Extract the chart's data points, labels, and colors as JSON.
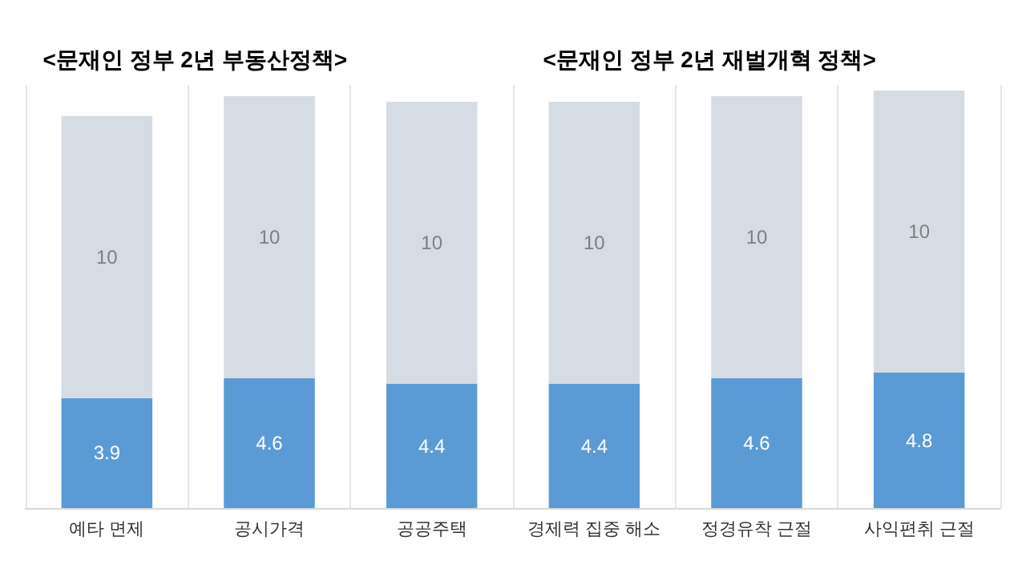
{
  "chart_data": {
    "type": "bar",
    "stacked": true,
    "data_labels": true,
    "grid": "x",
    "annotations": [
      "<문재인 정부 2년 부동산정책>",
      "<문재인 정부 2년 재벌개혁 정책>"
    ],
    "categories": [
      "예타 면제",
      "공시가격",
      "공공주택",
      "경제력 집중 해소",
      "정경유착 근절",
      "사익편취 근절"
    ],
    "series": [
      {
        "color": "#5b9bd5",
        "values": [
          3.9,
          4.6,
          4.4,
          4.4,
          4.6,
          4.8
        ]
      },
      {
        "color": "#d6dce4",
        "values": [
          10,
          10,
          10,
          10,
          10,
          10
        ]
      }
    ]
  }
}
